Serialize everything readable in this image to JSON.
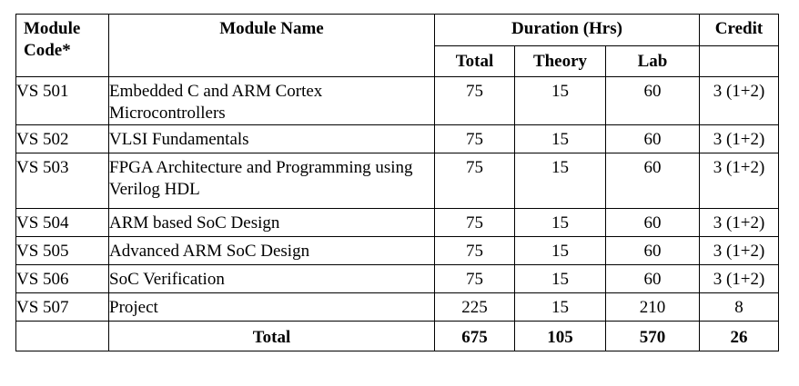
{
  "table": {
    "headers": {
      "code": "Module Code*",
      "name": "Module Name",
      "duration": "Duration (Hrs)",
      "credit": "Credit",
      "total": "Total",
      "theory": "Theory",
      "lab": "Lab"
    },
    "rows": [
      {
        "code": "VS 501",
        "name": "Embedded C and ARM Cortex Microcontrollers",
        "total": "75",
        "theory": "15",
        "lab": "60",
        "credit": "3 (1+2)"
      },
      {
        "code": "VS 502",
        "name": "VLSI Fundamentals",
        "total": "75",
        "theory": "15",
        "lab": "60",
        "credit": "3 (1+2)"
      },
      {
        "code": "VS 503",
        "name": "FPGA Architecture and Programming using Verilog HDL",
        "total": "75",
        "theory": "15",
        "lab": "60",
        "credit": "3 (1+2)"
      },
      {
        "code": "VS 504",
        "name": "ARM based SoC Design",
        "total": "75",
        "theory": "15",
        "lab": "60",
        "credit": "3 (1+2)"
      },
      {
        "code": "VS 505",
        "name": "Advanced ARM SoC Design",
        "total": "75",
        "theory": "15",
        "lab": "60",
        "credit": "3 (1+2)"
      },
      {
        "code": "VS 506",
        "name": "SoC Verification",
        "total": "75",
        "theory": "15",
        "lab": "60",
        "credit": "3 (1+2)"
      },
      {
        "code": "VS 507",
        "name": "Project",
        "total": "225",
        "theory": "15",
        "lab": "210",
        "credit": "8"
      }
    ],
    "totals": {
      "label": "Total",
      "total": "675",
      "theory": "105",
      "lab": "570",
      "credit": "26"
    }
  }
}
